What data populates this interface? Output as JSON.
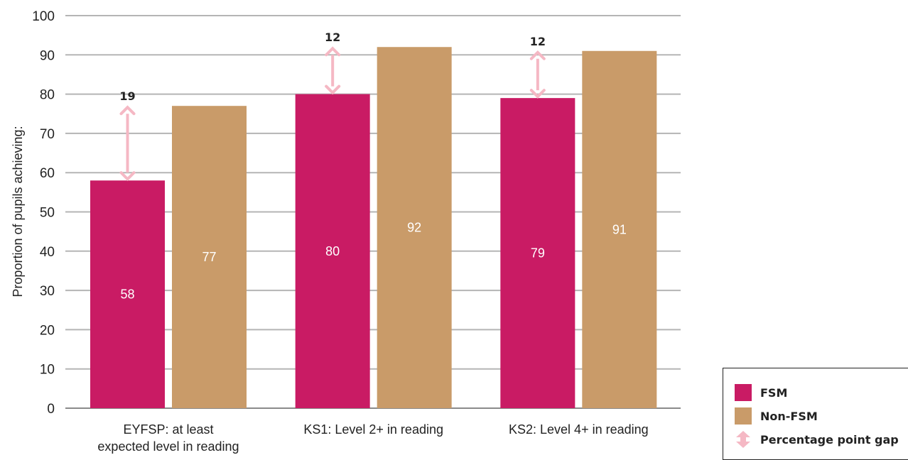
{
  "chart_data": {
    "type": "bar",
    "ylabel": "Proportion of pupils achieving:",
    "ylim": [
      0,
      100
    ],
    "yticks": [
      0,
      10,
      20,
      30,
      40,
      50,
      60,
      70,
      80,
      90,
      100
    ],
    "grid": true,
    "categories": [
      [
        "EYFSP: at least",
        "expected level in reading"
      ],
      [
        "KS1: Level 2+ in reading"
      ],
      [
        "KS2: Level 4+ in reading"
      ]
    ],
    "series": [
      {
        "name": "FSM",
        "color": "#c91b64",
        "values": [
          58,
          80,
          79
        ]
      },
      {
        "name": "Non-FSM",
        "color": "#c99b69",
        "values": [
          77,
          92,
          91
        ]
      }
    ],
    "gaps": [
      19,
      12,
      12
    ],
    "gap_color": "#f5b8c4",
    "legend_position": "bottom-right"
  },
  "legend": {
    "items": [
      {
        "label": "FSM",
        "color": "#c91b64"
      },
      {
        "label": "Non-FSM",
        "color": "#c99b69"
      },
      {
        "label": "Percentage point gap",
        "color": "#f5b8c4",
        "icon": "double-arrow-icon"
      }
    ]
  }
}
